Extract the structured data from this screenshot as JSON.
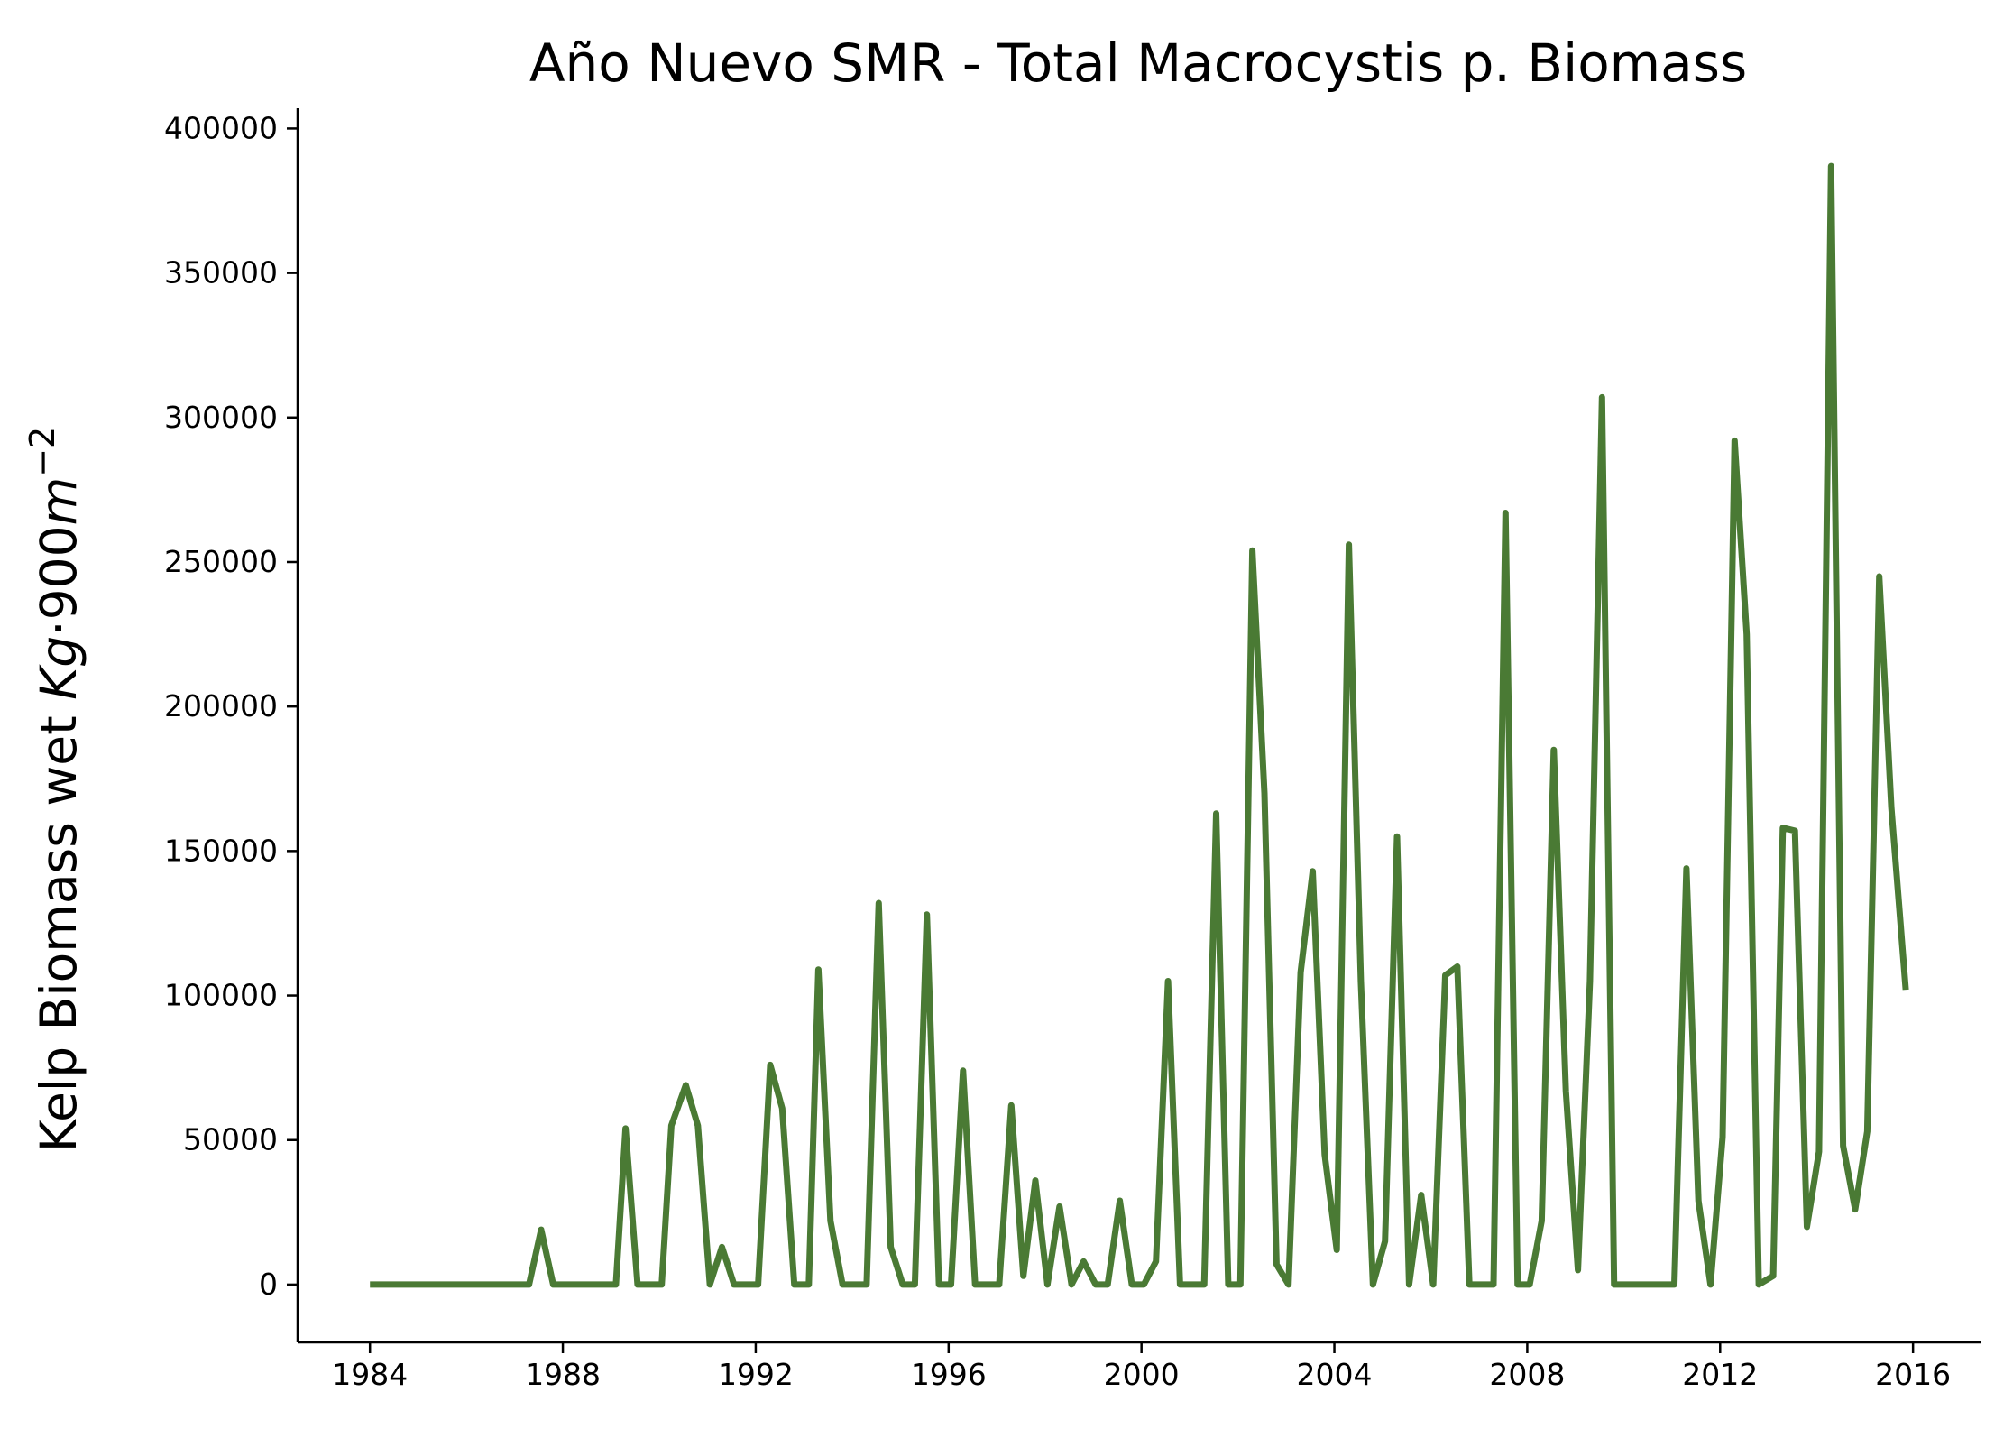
{
  "chart_data": {
    "type": "line",
    "title": "Año Nuevo SMR - Total Macrocystis p. Biomass",
    "ylabel_text": "Kelp Biomass  wet ",
    "ylabel_math": {
      "kg": "Kg",
      "dot": "·",
      "num": "900",
      "m": "m",
      "exp": "−2"
    },
    "xlabel": "",
    "xlim": [
      1982.5,
      2017.4
    ],
    "ylim": [
      -20000,
      407000
    ],
    "xticks": [
      1984,
      1988,
      1992,
      1996,
      2000,
      2004,
      2008,
      2012,
      2016
    ],
    "yticks": [
      0,
      50000,
      100000,
      150000,
      200000,
      250000,
      300000,
      350000,
      400000
    ],
    "grid": false,
    "series": [
      {
        "color": "#4a7a34",
        "points": [
          [
            1984.0,
            0
          ],
          [
            1985.0,
            0
          ],
          [
            1986.0,
            0
          ],
          [
            1987.3,
            0
          ],
          [
            1987.55,
            19000
          ],
          [
            1987.8,
            0
          ],
          [
            1988.3,
            0
          ],
          [
            1989.1,
            0
          ],
          [
            1989.3,
            54000
          ],
          [
            1989.55,
            0
          ],
          [
            1990.05,
            0
          ],
          [
            1990.25,
            55000
          ],
          [
            1990.55,
            69000
          ],
          [
            1990.8,
            55000
          ],
          [
            1991.05,
            0
          ],
          [
            1991.3,
            13000
          ],
          [
            1991.55,
            0
          ],
          [
            1992.05,
            0
          ],
          [
            1992.3,
            76000
          ],
          [
            1992.55,
            61000
          ],
          [
            1992.8,
            0
          ],
          [
            1993.1,
            0
          ],
          [
            1993.3,
            109000
          ],
          [
            1993.55,
            22000
          ],
          [
            1993.8,
            0
          ],
          [
            1994.3,
            0
          ],
          [
            1994.55,
            132000
          ],
          [
            1994.8,
            13000
          ],
          [
            1995.05,
            0
          ],
          [
            1995.3,
            0
          ],
          [
            1995.55,
            128000
          ],
          [
            1995.8,
            0
          ],
          [
            1996.05,
            0
          ],
          [
            1996.3,
            74000
          ],
          [
            1996.55,
            0
          ],
          [
            1997.05,
            0
          ],
          [
            1997.3,
            62000
          ],
          [
            1997.55,
            3000
          ],
          [
            1997.8,
            36000
          ],
          [
            1998.05,
            0
          ],
          [
            1998.3,
            27000
          ],
          [
            1998.55,
            0
          ],
          [
            1998.8,
            8000
          ],
          [
            1999.05,
            0
          ],
          [
            1999.3,
            0
          ],
          [
            1999.55,
            29000
          ],
          [
            1999.8,
            0
          ],
          [
            2000.05,
            0
          ],
          [
            2000.3,
            8000
          ],
          [
            2000.55,
            105000
          ],
          [
            2000.8,
            0
          ],
          [
            2001.3,
            0
          ],
          [
            2001.55,
            163000
          ],
          [
            2001.8,
            0
          ],
          [
            2002.05,
            0
          ],
          [
            2002.3,
            254000
          ],
          [
            2002.55,
            170000
          ],
          [
            2002.8,
            7000
          ],
          [
            2003.05,
            0
          ],
          [
            2003.3,
            108000
          ],
          [
            2003.55,
            143000
          ],
          [
            2003.8,
            45000
          ],
          [
            2004.05,
            12000
          ],
          [
            2004.3,
            256000
          ],
          [
            2004.55,
            105000
          ],
          [
            2004.8,
            0
          ],
          [
            2005.05,
            15000
          ],
          [
            2005.3,
            155000
          ],
          [
            2005.55,
            0
          ],
          [
            2005.8,
            31000
          ],
          [
            2006.05,
            0
          ],
          [
            2006.3,
            107000
          ],
          [
            2006.55,
            110000
          ],
          [
            2006.8,
            0
          ],
          [
            2007.3,
            0
          ],
          [
            2007.55,
            267000
          ],
          [
            2007.8,
            0
          ],
          [
            2008.05,
            0
          ],
          [
            2008.3,
            22000
          ],
          [
            2008.55,
            185000
          ],
          [
            2008.8,
            67000
          ],
          [
            2009.05,
            5000
          ],
          [
            2009.3,
            105000
          ],
          [
            2009.55,
            307000
          ],
          [
            2009.8,
            0
          ],
          [
            2010.5,
            0
          ],
          [
            2011.05,
            0
          ],
          [
            2011.3,
            144000
          ],
          [
            2011.55,
            29000
          ],
          [
            2011.8,
            0
          ],
          [
            2012.05,
            51000
          ],
          [
            2012.3,
            292000
          ],
          [
            2012.55,
            225000
          ],
          [
            2012.8,
            0
          ],
          [
            2013.1,
            3000
          ],
          [
            2013.3,
            158000
          ],
          [
            2013.55,
            157000
          ],
          [
            2013.8,
            20000
          ],
          [
            2014.05,
            46000
          ],
          [
            2014.3,
            387000
          ],
          [
            2014.55,
            48000
          ],
          [
            2014.8,
            26000
          ],
          [
            2015.05,
            53000
          ],
          [
            2015.3,
            245000
          ],
          [
            2015.55,
            165000
          ],
          [
            2015.85,
            102000
          ]
        ]
      }
    ]
  }
}
